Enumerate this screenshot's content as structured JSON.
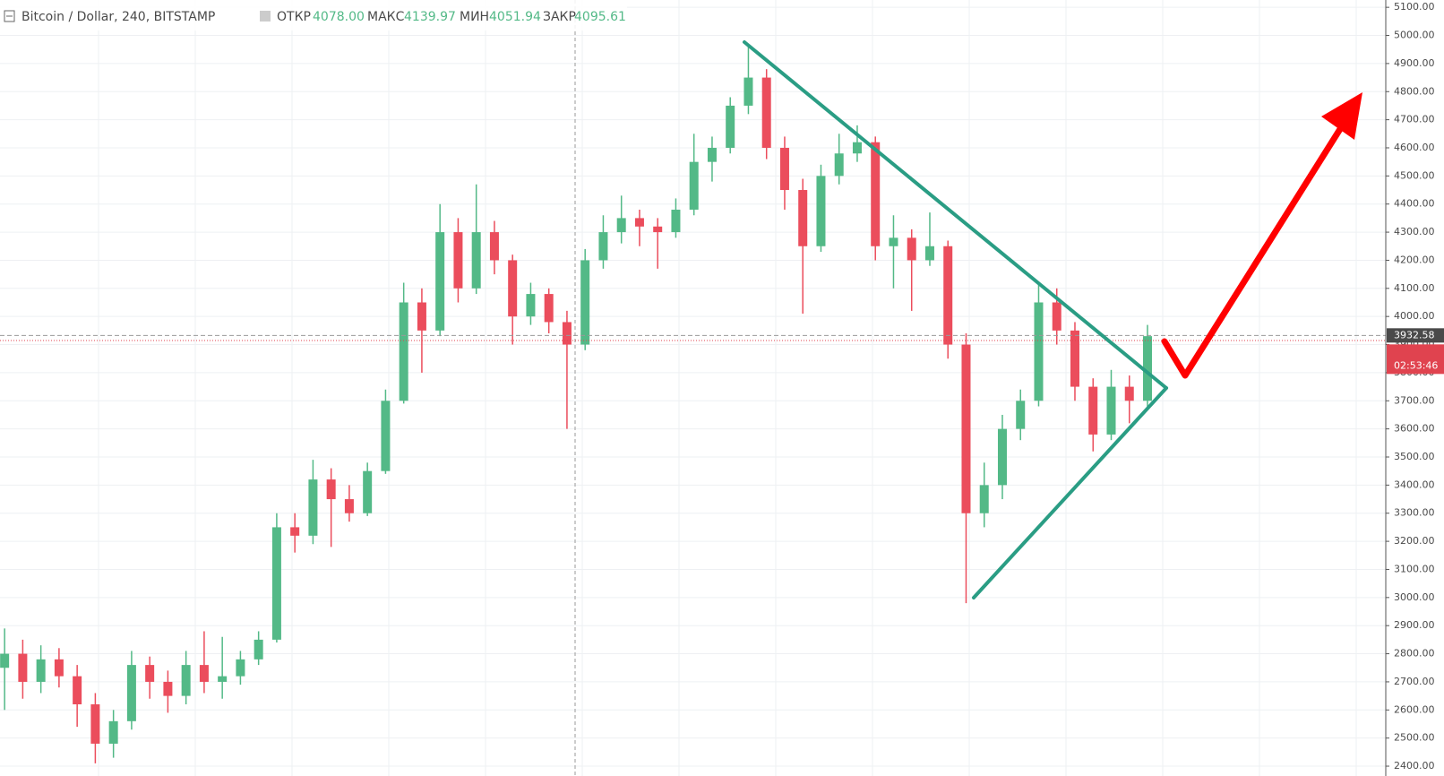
{
  "chart_data": {
    "type": "candlestick",
    "header": {
      "symbol": "Bitcoin / Dollar, 240, BITSTAMP",
      "open_label": "ОТКР",
      "open": "4078.00",
      "high_label": "МАКС",
      "high": "4139.97",
      "low_label": "МИН",
      "low": "4051.94",
      "close_label": "ЗАКР",
      "close": "4095.61"
    },
    "last_price": 3932.58,
    "countdown": "02:53:46",
    "up_color": "#53b987",
    "down_color": "#eb4d5c",
    "ylim": [
      2365,
      5126
    ],
    "yticks": [
      {
        "value": 2400,
        "label": "2400.00"
      },
      {
        "value": 2500,
        "label": "2500.00"
      },
      {
        "value": 2600,
        "label": "2600.00"
      },
      {
        "value": 2700,
        "label": "2700.00"
      },
      {
        "value": 2800,
        "label": "2800.00"
      },
      {
        "value": 2900,
        "label": "2900.00"
      },
      {
        "value": 3000,
        "label": "3000.00"
      },
      {
        "value": 3100,
        "label": "3100.00"
      },
      {
        "value": 3200,
        "label": "3200.00"
      },
      {
        "value": 3300,
        "label": "3300.00"
      },
      {
        "value": 3400,
        "label": "3400.00"
      },
      {
        "value": 3500,
        "label": "3500.00"
      },
      {
        "value": 3600,
        "label": "3600.00"
      },
      {
        "value": 3700,
        "label": "3700.00"
      },
      {
        "value": 3800,
        "label": "3800.00"
      },
      {
        "value": 3900,
        "label": "3900.00"
      },
      {
        "value": 4000,
        "label": "4000.00"
      },
      {
        "value": 4100,
        "label": "4100.00"
      },
      {
        "value": 4200,
        "label": "4200.00"
      },
      {
        "value": 4300,
        "label": "4300.00"
      },
      {
        "value": 4400,
        "label": "4400.00"
      },
      {
        "value": 4500,
        "label": "4500.00"
      },
      {
        "value": 4600,
        "label": "4600.00"
      },
      {
        "value": 4700,
        "label": "4700.00"
      },
      {
        "value": 4800,
        "label": "4800.00"
      },
      {
        "value": 4900,
        "label": "4900.00"
      },
      {
        "value": 5000,
        "label": "5000.00"
      },
      {
        "value": 5100,
        "label": "5100.00"
      }
    ],
    "grid": true,
    "candles": {
      "open": [
        2750,
        2800,
        2700,
        2780,
        2720,
        2620,
        2480,
        2560,
        2760,
        2700,
        2650,
        2760,
        2700,
        2720,
        2780,
        2850,
        3250,
        3220,
        3420,
        3350,
        3300,
        3450,
        3700,
        4050,
        3950,
        4300,
        4100,
        4300,
        4200,
        4000,
        4080,
        3980,
        3900,
        4200,
        4300,
        4350,
        4320,
        4300,
        4380,
        4550,
        4600,
        4750,
        4850,
        4600,
        4450,
        4250,
        4500,
        4580,
        4620,
        4250,
        4280,
        4200,
        4250,
        3900,
        3300,
        3400,
        3600,
        3700,
        4050,
        3950,
        3750,
        3580,
        3750,
        3700
      ],
      "high": [
        2890,
        2850,
        2830,
        2820,
        2760,
        2660,
        2600,
        2810,
        2790,
        2740,
        2810,
        2880,
        2860,
        2810,
        2880,
        3300,
        3300,
        3490,
        3460,
        3400,
        3480,
        3740,
        4120,
        4100,
        4400,
        4350,
        4470,
        4340,
        4220,
        4120,
        4100,
        4020,
        4240,
        4360,
        4430,
        4380,
        4350,
        4420,
        4650,
        4640,
        4780,
        4970,
        4880,
        4640,
        4490,
        4540,
        4650,
        4680,
        4640,
        4360,
        4310,
        4370,
        4270,
        3940,
        3480,
        3650,
        3740,
        4120,
        4100,
        3980,
        3780,
        3810,
        3790,
        3970
      ],
      "low": [
        2600,
        2640,
        2660,
        2680,
        2540,
        2410,
        2430,
        2530,
        2640,
        2590,
        2620,
        2660,
        2640,
        2690,
        2760,
        2840,
        3160,
        3190,
        3180,
        3270,
        3290,
        3440,
        3690,
        3800,
        3930,
        4050,
        4080,
        4150,
        3900,
        3970,
        3940,
        3600,
        3880,
        4170,
        4260,
        4250,
        4170,
        4280,
        4360,
        4480,
        4580,
        4720,
        4560,
        4380,
        4010,
        4230,
        4470,
        4550,
        4200,
        4100,
        4020,
        4180,
        3850,
        2980,
        3250,
        3350,
        3560,
        3680,
        3900,
        3700,
        3520,
        3560,
        3620,
        3680
      ],
      "close": [
        2800,
        2700,
        2780,
        2720,
        2620,
        2480,
        2560,
        2760,
        2700,
        2650,
        2760,
        2700,
        2720,
        2780,
        2850,
        3250,
        3220,
        3420,
        3350,
        3300,
        3450,
        3700,
        4050,
        3950,
        4300,
        4100,
        4300,
        4200,
        4000,
        4080,
        3980,
        3900,
        4200,
        4300,
        4350,
        4320,
        4300,
        4380,
        4550,
        4600,
        4750,
        4850,
        4600,
        4450,
        4250,
        4500,
        4580,
        4620,
        4250,
        4280,
        4200,
        4250,
        3900,
        3300,
        3400,
        3600,
        3700,
        4050,
        3950,
        3750,
        3580,
        3750,
        3700,
        3930
      ]
    }
  }
}
